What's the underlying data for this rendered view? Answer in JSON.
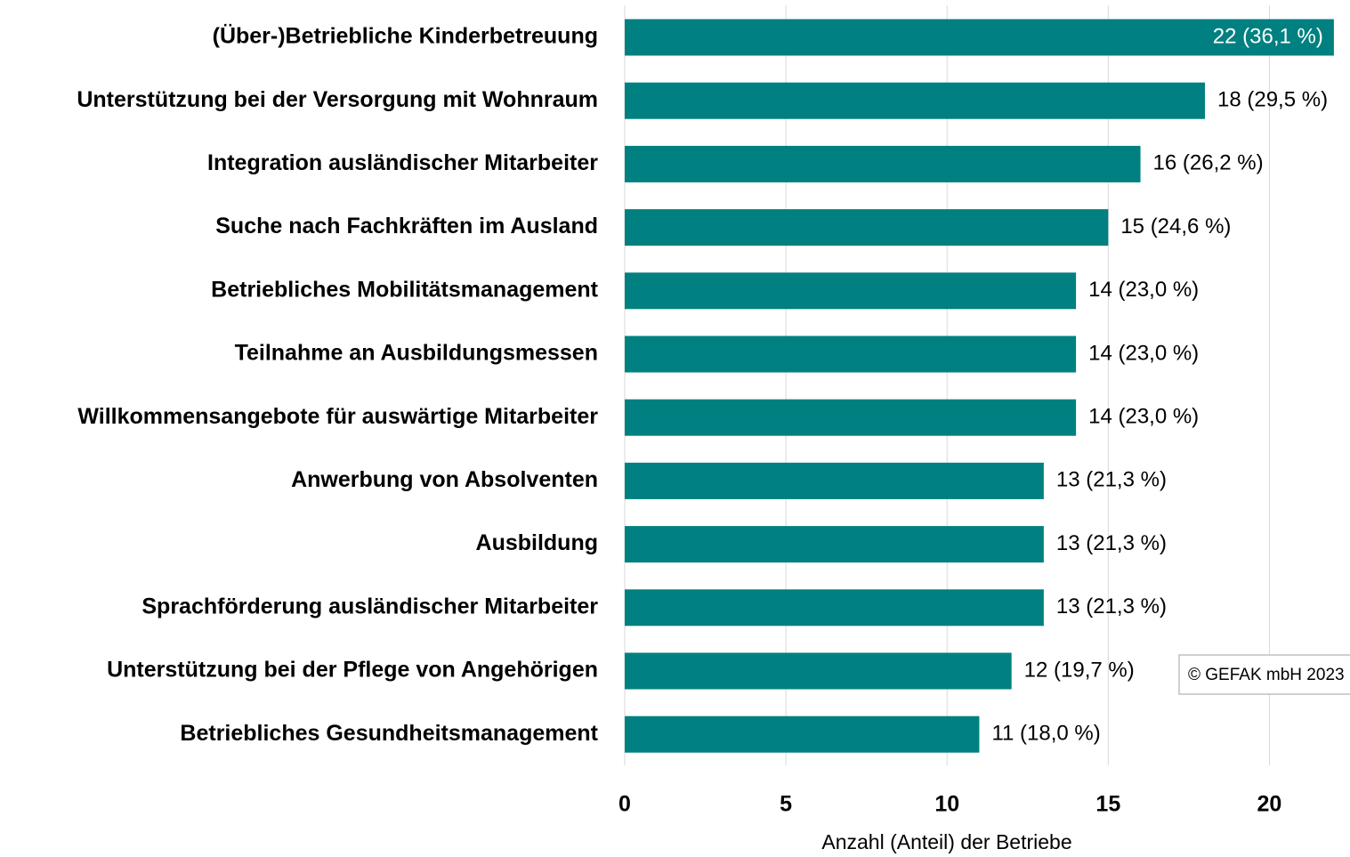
{
  "chart_data": {
    "type": "hbar",
    "categories": [
      "(Über-)Betriebliche Kinderbetreuung",
      "Unterstützung bei der Versorgung mit Wohnraum",
      "Integration ausländischer Mitarbeiter",
      "Suche nach Fachkräften im Ausland",
      "Betriebliches Mobilitätsmanagement",
      "Teilnahme an Ausbildungsmessen",
      "Willkommensangebote für auswärtige Mitarbeiter",
      "Anwerbung von Absolventen",
      "Ausbildung",
      "Sprachförderung ausländischer Mitarbeiter",
      "Unterstützung bei der Pflege von Angehörigen",
      "Betriebliches Gesundheitsmanagement"
    ],
    "values": [
      22,
      18,
      16,
      15,
      14,
      14,
      14,
      13,
      13,
      13,
      12,
      11
    ],
    "value_labels": [
      "22 (36,1 %)",
      "18 (29,5 %)",
      "16 (26,2 %)",
      "15 (24,6 %)",
      "14 (23,0 %)",
      "14 (23,0 %)",
      "14 (23,0 %)",
      "13 (21,3 %)",
      "13 (21,3 %)",
      "13 (21,3 %)",
      "12 (19,7 %)",
      "11 (18,0 %)"
    ],
    "color": "#008080",
    "xlim": [
      0,
      22.5
    ],
    "xticks": [
      0,
      5,
      10,
      15,
      20
    ],
    "grid": true,
    "xlabel": "Anzahl (Anteil) der Betriebe",
    "annotation": "© GEFAK mbH 2023"
  }
}
